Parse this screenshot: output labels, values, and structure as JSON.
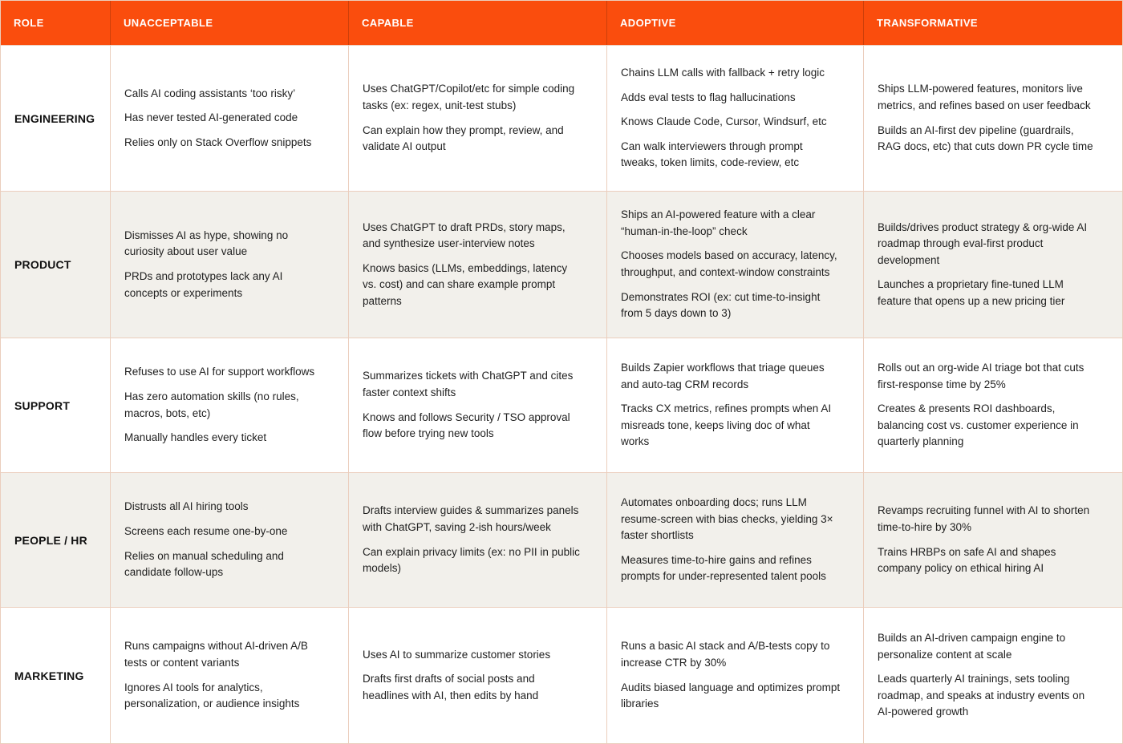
{
  "colors": {
    "header_bg": "#FA4D0D",
    "header_text": "#FFFFFF",
    "row_bg": "#FFFFFF",
    "row_alt_bg": "#F2F0EB",
    "border": "#EBCEBD",
    "text": "#1F1F1F"
  },
  "table": {
    "columns": [
      {
        "key": "role",
        "label": "ROLE"
      },
      {
        "key": "unacceptable",
        "label": "UNACCEPTABLE"
      },
      {
        "key": "capable",
        "label": "CAPABLE"
      },
      {
        "key": "adoptive",
        "label": "ADOPTIVE"
      },
      {
        "key": "transformative",
        "label": "TRANSFORMATIVE"
      }
    ],
    "rows": [
      {
        "role": "ENGINEERING",
        "unacceptable": [
          "Calls AI coding assistants ‘too risky’",
          "Has never tested AI-generated code",
          "Relies only on Stack Overflow snippets"
        ],
        "capable": [
          "Uses ChatGPT/Copilot/etc for simple coding tasks (ex: regex, unit-test stubs)",
          "Can explain how they prompt, review, and validate AI output"
        ],
        "adoptive": [
          "Chains LLM calls with fallback + retry logic",
          "Adds eval tests to flag hallucinations",
          "Knows Claude Code, Cursor, Windsurf, etc",
          "Can walk interviewers through prompt tweaks, token limits, code-review, etc"
        ],
        "transformative": [
          "Ships LLM-powered features, monitors live metrics, and refines based on user feedback",
          "Builds an AI-first dev pipeline (guardrails, RAG docs, etc) that cuts down PR cycle time"
        ]
      },
      {
        "role": "PRODUCT",
        "unacceptable": [
          "Dismisses AI as hype, showing no curiosity about user value",
          "PRDs and prototypes lack any AI concepts or experiments"
        ],
        "capable": [
          "Uses ChatGPT to draft PRDs, story maps, and synthesize user-interview notes",
          "Knows basics (LLMs, embeddings, latency vs. cost) and can share example prompt patterns"
        ],
        "adoptive": [
          "Ships an AI-powered feature with a clear “human-in-the-loop” check",
          "Chooses models based on accuracy, latency, throughput, and context-window constraints",
          "Demonstrates ROI (ex: cut time-to-insight from 5 days down to 3)"
        ],
        "transformative": [
          "Builds/drives product strategy & org-wide AI roadmap through eval-first product development",
          "Launches a proprietary fine-tuned LLM feature that opens up a new pricing tier"
        ]
      },
      {
        "role": "SUPPORT",
        "unacceptable": [
          "Refuses to use AI for support workflows",
          "Has zero automation skills (no rules, macros, bots, etc)",
          "Manually handles every ticket"
        ],
        "capable": [
          "Summarizes tickets with ChatGPT and cites faster context shifts",
          "Knows and follows Security / TSO approval flow before trying new tools"
        ],
        "adoptive": [
          "Builds Zapier workflows that triage queues and auto-tag CRM records",
          "Tracks CX metrics, refines prompts when AI misreads tone, keeps living doc of what works"
        ],
        "transformative": [
          "Rolls out an org-wide AI triage bot that cuts first-response time by 25%",
          "Creates & presents ROI dashboards, balancing cost vs. customer experience in quarterly planning"
        ]
      },
      {
        "role": "PEOPLE / HR",
        "unacceptable": [
          "Distrusts all AI hiring tools",
          "Screens each resume one-by-one",
          "Relies on manual scheduling and candidate follow-ups"
        ],
        "capable": [
          "Drafts interview guides & summarizes panels with ChatGPT, saving 2-ish hours/week",
          "Can explain privacy limits (ex: no PII in public models)"
        ],
        "adoptive": [
          "Automates onboarding docs; runs LLM resume-screen with bias checks, yielding 3× faster shortlists",
          "Measures time-to-hire gains and refines prompts for under-represented talent pools"
        ],
        "transformative": [
          "Revamps recruiting funnel with AI to shorten time-to-hire by 30%",
          "Trains HRBPs on safe AI and shapes company policy on ethical hiring AI"
        ]
      },
      {
        "role": "MARKETING",
        "unacceptable": [
          "Runs campaigns without AI-driven A/B tests or content variants",
          "Ignores AI tools for analytics, personalization, or audience insights"
        ],
        "capable": [
          "Uses AI to summarize customer stories",
          "Drafts first drafts of social posts and headlines with AI, then edits by hand"
        ],
        "adoptive": [
          "Runs a basic AI stack and A/B-tests copy to increase CTR by 30%",
          "Audits biased language and optimizes prompt libraries"
        ],
        "transformative": [
          "Builds an AI-driven campaign engine to personalize content at scale",
          "Leads quarterly AI trainings, sets tooling roadmap, and speaks at industry events on AI-powered growth"
        ]
      }
    ]
  }
}
